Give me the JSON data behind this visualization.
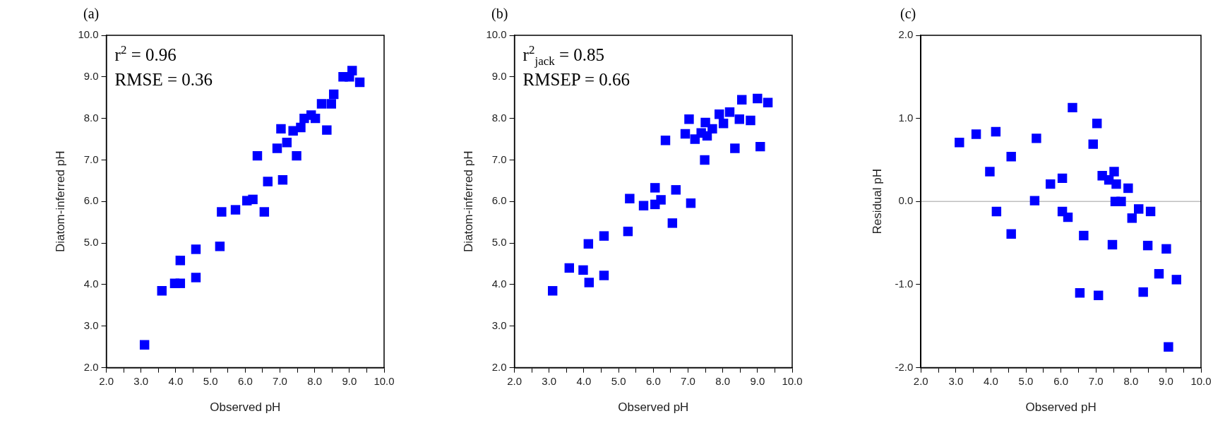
{
  "chart_data": [
    {
      "type": "scatter",
      "title": "(a)",
      "xlabel": "Observed pH",
      "ylabel": "Diatom-inferred pH",
      "marker": "square",
      "grid": false,
      "annotations": [
        "r$^{2}$ = 0.96",
        "RMSE = 0.36"
      ],
      "xlim": [
        2,
        10
      ],
      "ylim": [
        2,
        10
      ],
      "xticks": [
        {
          "value": 2,
          "label": "2.0"
        },
        {
          "value": 2.5,
          "label": null
        },
        {
          "value": 3,
          "label": "3.0"
        },
        {
          "value": 3.5,
          "label": null
        },
        {
          "value": 4,
          "label": "4.0"
        },
        {
          "value": 4.5,
          "label": null
        },
        {
          "value": 5,
          "label": "5.0"
        },
        {
          "value": 5.5,
          "label": null
        },
        {
          "value": 6,
          "label": "6.0"
        },
        {
          "value": 6.5,
          "label": null
        },
        {
          "value": 7,
          "label": "7.0"
        },
        {
          "value": 7.5,
          "label": null
        },
        {
          "value": 8,
          "label": "8.0"
        },
        {
          "value": 8.5,
          "label": null
        },
        {
          "value": 9,
          "label": "9.0"
        },
        {
          "value": 9.5,
          "label": null
        },
        {
          "value": 10,
          "label": "10.0"
        }
      ],
      "yticks": [
        {
          "value": 2,
          "label": "2.0"
        },
        {
          "value": 3,
          "label": "3.0"
        },
        {
          "value": 4,
          "label": "4.0"
        },
        {
          "value": 5,
          "label": "5.0"
        },
        {
          "value": 6,
          "label": "6.0"
        },
        {
          "value": 7,
          "label": "7.0"
        },
        {
          "value": 8,
          "label": "8.0"
        },
        {
          "value": 9,
          "label": "9.0"
        },
        {
          "value": 10,
          "label": "10.0"
        }
      ],
      "series": [
        {
          "color": "#0000ff",
          "x": [
            3.1,
            3.6,
            3.97,
            4.13,
            4.13,
            4.58,
            4.58,
            5.27,
            5.32,
            5.72,
            6.05,
            6.22,
            6.35,
            6.55,
            6.65,
            6.92,
            7.03,
            7.08,
            7.2,
            7.38,
            7.48,
            7.6,
            7.7,
            7.9,
            8.02,
            8.2,
            8.35,
            8.48,
            8.55,
            8.82,
            9.0,
            9.08,
            9.3
          ],
          "values": [
            2.55,
            3.85,
            4.03,
            4.03,
            4.58,
            4.17,
            4.85,
            4.92,
            5.75,
            5.8,
            6.02,
            6.05,
            7.1,
            5.75,
            6.48,
            7.28,
            7.75,
            6.52,
            7.42,
            7.7,
            7.1,
            7.78,
            8.0,
            8.08,
            8.0,
            8.35,
            7.72,
            8.35,
            8.58,
            9.0,
            9.0,
            9.15,
            8.87
          ]
        }
      ]
    },
    {
      "type": "scatter",
      "title": "(b)",
      "xlabel": "Observed pH",
      "ylabel": "Diatom-inferred pH",
      "marker": "square",
      "grid": false,
      "annotations": [
        "r$^{2}$$_{jack}$ = 0.85",
        "RMSEP = 0.66"
      ],
      "xlim": [
        2,
        10
      ],
      "ylim": [
        2,
        10
      ],
      "xticks": [
        {
          "value": 2,
          "label": "2.0"
        },
        {
          "value": 2.5,
          "label": null
        },
        {
          "value": 3,
          "label": "3.0"
        },
        {
          "value": 3.5,
          "label": null
        },
        {
          "value": 4,
          "label": "4.0"
        },
        {
          "value": 4.5,
          "label": null
        },
        {
          "value": 5,
          "label": "5.0"
        },
        {
          "value": 5.5,
          "label": null
        },
        {
          "value": 6,
          "label": "6.0"
        },
        {
          "value": 6.5,
          "label": null
        },
        {
          "value": 7,
          "label": "7.0"
        },
        {
          "value": 7.5,
          "label": null
        },
        {
          "value": 8,
          "label": "8.0"
        },
        {
          "value": 8.5,
          "label": null
        },
        {
          "value": 9,
          "label": "9.0"
        },
        {
          "value": 9.5,
          "label": null
        },
        {
          "value": 10,
          "label": "10.0"
        }
      ],
      "yticks": [
        {
          "value": 2,
          "label": "2.0"
        },
        {
          "value": 3,
          "label": "3.0"
        },
        {
          "value": 4,
          "label": "4.0"
        },
        {
          "value": 5,
          "label": "5.0"
        },
        {
          "value": 6,
          "label": "6.0"
        },
        {
          "value": 7,
          "label": "7.0"
        },
        {
          "value": 8,
          "label": "8.0"
        },
        {
          "value": 9,
          "label": "9.0"
        },
        {
          "value": 10,
          "label": "10.0"
        }
      ],
      "series": [
        {
          "color": "#0000ff",
          "x": [
            3.1,
            3.58,
            3.98,
            4.15,
            4.13,
            4.58,
            4.58,
            5.27,
            5.32,
            5.72,
            6.05,
            6.05,
            6.22,
            6.35,
            6.55,
            6.65,
            6.92,
            7.03,
            7.08,
            7.2,
            7.38,
            7.48,
            7.5,
            7.55,
            7.7,
            7.9,
            8.02,
            8.2,
            8.35,
            8.48,
            8.55,
            8.8,
            9.0,
            9.08,
            9.3
          ],
          "values": [
            3.85,
            4.4,
            4.35,
            4.05,
            4.98,
            4.22,
            5.17,
            5.28,
            6.07,
            5.9,
            5.93,
            6.33,
            6.04,
            7.47,
            5.48,
            6.28,
            7.63,
            7.98,
            5.96,
            7.5,
            7.65,
            7.0,
            7.9,
            7.58,
            7.75,
            8.1,
            7.88,
            8.15,
            7.28,
            7.98,
            8.45,
            7.95,
            8.48,
            7.32,
            8.38
          ]
        }
      ]
    },
    {
      "type": "scatter",
      "title": "(c)",
      "xlabel": "Observed pH",
      "ylabel": "Residual pH",
      "marker": "square",
      "grid": false,
      "xlim": [
        2,
        10
      ],
      "ylim": [
        -2,
        2
      ],
      "xticks": [
        {
          "value": 2,
          "label": "2.0"
        },
        {
          "value": 2.5,
          "label": null
        },
        {
          "value": 3,
          "label": "3.0"
        },
        {
          "value": 3.5,
          "label": null
        },
        {
          "value": 4,
          "label": "4.0"
        },
        {
          "value": 4.5,
          "label": null
        },
        {
          "value": 5,
          "label": "5.0"
        },
        {
          "value": 5.5,
          "label": null
        },
        {
          "value": 6,
          "label": "6.0"
        },
        {
          "value": 6.5,
          "label": null
        },
        {
          "value": 7,
          "label": "7.0"
        },
        {
          "value": 7.5,
          "label": null
        },
        {
          "value": 8,
          "label": "8.0"
        },
        {
          "value": 8.5,
          "label": null
        },
        {
          "value": 9,
          "label": "9.0"
        },
        {
          "value": 9.5,
          "label": null
        },
        {
          "value": 10,
          "label": "10.0"
        }
      ],
      "yticks": [
        {
          "value": -2,
          "label": "-2.0"
        },
        {
          "value": -1,
          "label": "-1.0"
        },
        {
          "value": 0,
          "label": "0.0"
        },
        {
          "value": 1,
          "label": "1.0"
        },
        {
          "value": 2,
          "label": "2.0"
        }
      ],
      "ref_lines": [
        {
          "axis": "y",
          "value": 0,
          "color": "#bfbfbf"
        }
      ],
      "series": [
        {
          "color": "#0000ff",
          "x": [
            3.1,
            3.58,
            4.14,
            3.97,
            4.16,
            4.58,
            4.58,
            5.3,
            5.25,
            5.7,
            6.04,
            6.04,
            6.2,
            6.33,
            6.54,
            6.65,
            6.92,
            7.03,
            7.07,
            7.18,
            7.37,
            7.47,
            7.52,
            7.58,
            7.55,
            7.72,
            7.92,
            8.03,
            8.22,
            8.35,
            8.48,
            8.56,
            8.8,
            9.01,
            9.07,
            9.3
          ],
          "values": [
            0.71,
            0.81,
            0.84,
            0.36,
            -0.12,
            0.54,
            -0.39,
            0.76,
            0.01,
            0.21,
            0.28,
            -0.12,
            -0.19,
            1.13,
            -1.1,
            -0.41,
            0.69,
            0.94,
            -1.13,
            0.31,
            0.26,
            -0.52,
            0.36,
            0.21,
            0.0,
            0.0,
            0.16,
            -0.2,
            -0.09,
            -1.09,
            -0.53,
            -0.12,
            -0.87,
            -0.57,
            -1.75,
            -0.94
          ]
        }
      ]
    }
  ]
}
